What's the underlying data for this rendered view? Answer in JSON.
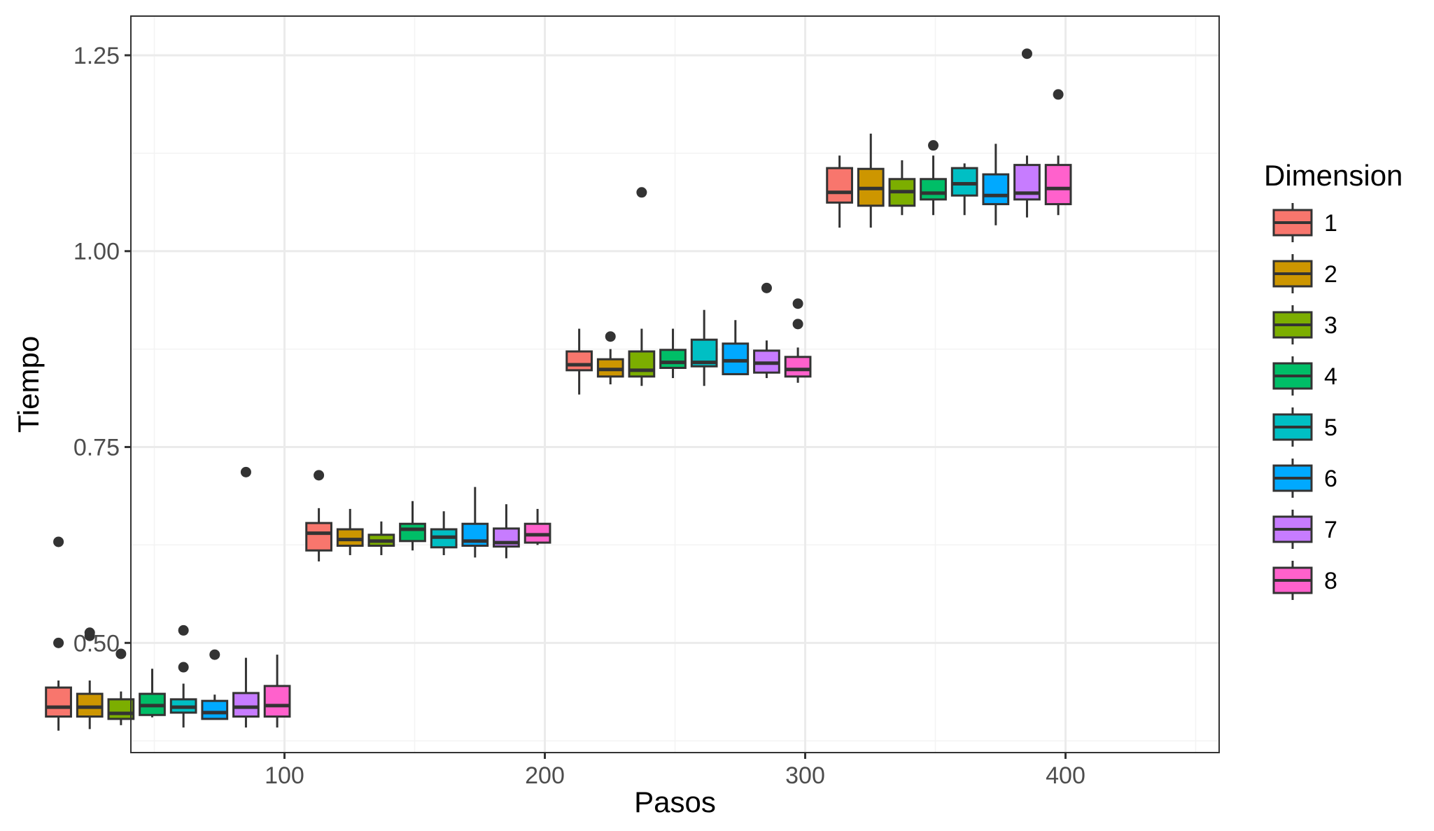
{
  "chart_data": {
    "type": "boxplot",
    "title": "",
    "xlabel": "Pasos",
    "ylabel": "Tiempo",
    "xlim": [
      41,
      459
    ],
    "ylim": [
      0.36,
      1.3
    ],
    "x_ticks": [
      {
        "value": 100,
        "label": "100"
      },
      {
        "value": 200,
        "label": "200"
      },
      {
        "value": 300,
        "label": "300"
      },
      {
        "value": 400,
        "label": "400"
      }
    ],
    "y_ticks": [
      {
        "value": 0.5,
        "label": "0.50"
      },
      {
        "value": 0.75,
        "label": "0.75"
      },
      {
        "value": 1.0,
        "label": "1.00"
      },
      {
        "value": 1.25,
        "label": "1.25"
      }
    ],
    "y_minor_ticks": [
      0.375,
      0.625,
      0.875,
      1.125
    ],
    "x_minor_ticks": [
      50,
      150,
      250,
      350,
      450
    ],
    "grid": true,
    "legend": {
      "title": "Dimension",
      "position": "right"
    },
    "box_width_units": 9.6,
    "groups": [
      {
        "x": 60,
        "boxes": [
          {
            "dimension": "1",
            "whisker_low": 0.388,
            "q1": 0.406,
            "median": 0.418,
            "q3": 0.443,
            "whisker_high": 0.452,
            "outliers": [
              0.5,
              0.629
            ]
          },
          {
            "dimension": "2",
            "whisker_low": 0.39,
            "q1": 0.406,
            "median": 0.418,
            "q3": 0.435,
            "whisker_high": 0.452,
            "outliers": [
              0.509,
              0.513
            ]
          },
          {
            "dimension": "3",
            "whisker_low": 0.395,
            "q1": 0.403,
            "median": 0.41,
            "q3": 0.428,
            "whisker_high": 0.438,
            "outliers": [
              0.486
            ]
          },
          {
            "dimension": "4",
            "whisker_low": 0.405,
            "q1": 0.408,
            "median": 0.42,
            "q3": 0.435,
            "whisker_high": 0.467,
            "outliers": []
          },
          {
            "dimension": "5",
            "whisker_low": 0.392,
            "q1": 0.411,
            "median": 0.418,
            "q3": 0.428,
            "whisker_high": 0.448,
            "outliers": [
              0.469,
              0.516
            ]
          },
          {
            "dimension": "6",
            "whisker_low": 0.403,
            "q1": 0.403,
            "median": 0.411,
            "q3": 0.426,
            "whisker_high": 0.434,
            "outliers": [
              0.485
            ]
          },
          {
            "dimension": "7",
            "whisker_low": 0.392,
            "q1": 0.406,
            "median": 0.418,
            "q3": 0.436,
            "whisker_high": 0.481,
            "outliers": [
              0.718
            ]
          },
          {
            "dimension": "8",
            "whisker_low": 0.392,
            "q1": 0.406,
            "median": 0.42,
            "q3": 0.445,
            "whisker_high": 0.485,
            "outliers": []
          }
        ]
      },
      {
        "x": 160,
        "boxes": [
          {
            "dimension": "1",
            "whisker_low": 0.604,
            "q1": 0.618,
            "median": 0.64,
            "q3": 0.653,
            "whisker_high": 0.672,
            "outliers": [
              0.714
            ]
          },
          {
            "dimension": "2",
            "whisker_low": 0.612,
            "q1": 0.624,
            "median": 0.632,
            "q3": 0.645,
            "whisker_high": 0.671,
            "outliers": []
          },
          {
            "dimension": "3",
            "whisker_low": 0.612,
            "q1": 0.624,
            "median": 0.63,
            "q3": 0.638,
            "whisker_high": 0.655,
            "outliers": []
          },
          {
            "dimension": "4",
            "whisker_low": 0.618,
            "q1": 0.63,
            "median": 0.645,
            "q3": 0.652,
            "whisker_high": 0.681,
            "outliers": []
          },
          {
            "dimension": "5",
            "whisker_low": 0.612,
            "q1": 0.622,
            "median": 0.635,
            "q3": 0.645,
            "whisker_high": 0.668,
            "outliers": []
          },
          {
            "dimension": "6",
            "whisker_low": 0.609,
            "q1": 0.624,
            "median": 0.63,
            "q3": 0.652,
            "whisker_high": 0.699,
            "outliers": []
          },
          {
            "dimension": "7",
            "whisker_low": 0.608,
            "q1": 0.623,
            "median": 0.628,
            "q3": 0.646,
            "whisker_high": 0.677,
            "outliers": []
          },
          {
            "dimension": "8",
            "whisker_low": 0.625,
            "q1": 0.628,
            "median": 0.638,
            "q3": 0.652,
            "whisker_high": 0.671,
            "outliers": []
          }
        ]
      },
      {
        "x": 260,
        "boxes": [
          {
            "dimension": "1",
            "whisker_low": 0.817,
            "q1": 0.848,
            "median": 0.855,
            "q3": 0.872,
            "whisker_high": 0.901,
            "outliers": []
          },
          {
            "dimension": "2",
            "whisker_low": 0.83,
            "q1": 0.84,
            "median": 0.849,
            "q3": 0.862,
            "whisker_high": 0.875,
            "outliers": [
              0.891
            ]
          },
          {
            "dimension": "3",
            "whisker_low": 0.828,
            "q1": 0.84,
            "median": 0.848,
            "q3": 0.872,
            "whisker_high": 0.901,
            "outliers": [
              1.075
            ]
          },
          {
            "dimension": "4",
            "whisker_low": 0.838,
            "q1": 0.851,
            "median": 0.858,
            "q3": 0.874,
            "whisker_high": 0.901,
            "outliers": []
          },
          {
            "dimension": "5",
            "whisker_low": 0.828,
            "q1": 0.853,
            "median": 0.858,
            "q3": 0.887,
            "whisker_high": 0.925,
            "outliers": []
          },
          {
            "dimension": "6",
            "whisker_low": 0.843,
            "q1": 0.843,
            "median": 0.86,
            "q3": 0.882,
            "whisker_high": 0.912,
            "outliers": []
          },
          {
            "dimension": "7",
            "whisker_low": 0.838,
            "q1": 0.845,
            "median": 0.857,
            "q3": 0.873,
            "whisker_high": 0.886,
            "outliers": [
              0.953
            ]
          },
          {
            "dimension": "8",
            "whisker_low": 0.832,
            "q1": 0.84,
            "median": 0.849,
            "q3": 0.865,
            "whisker_high": 0.877,
            "outliers": [
              0.907,
              0.933
            ]
          }
        ]
      },
      {
        "x": 360,
        "boxes": [
          {
            "dimension": "1",
            "whisker_low": 1.03,
            "q1": 1.062,
            "median": 1.075,
            "q3": 1.106,
            "whisker_high": 1.122,
            "outliers": []
          },
          {
            "dimension": "2",
            "whisker_low": 1.03,
            "q1": 1.058,
            "median": 1.08,
            "q3": 1.105,
            "whisker_high": 1.15,
            "outliers": []
          },
          {
            "dimension": "3",
            "whisker_low": 1.046,
            "q1": 1.058,
            "median": 1.076,
            "q3": 1.092,
            "whisker_high": 1.116,
            "outliers": []
          },
          {
            "dimension": "4",
            "whisker_low": 1.046,
            "q1": 1.066,
            "median": 1.074,
            "q3": 1.092,
            "whisker_high": 1.122,
            "outliers": [
              1.135
            ]
          },
          {
            "dimension": "5",
            "whisker_low": 1.046,
            "q1": 1.071,
            "median": 1.086,
            "q3": 1.106,
            "whisker_high": 1.112,
            "outliers": []
          },
          {
            "dimension": "6",
            "whisker_low": 1.033,
            "q1": 1.06,
            "median": 1.071,
            "q3": 1.098,
            "whisker_high": 1.137,
            "outliers": []
          },
          {
            "dimension": "7",
            "whisker_low": 1.043,
            "q1": 1.066,
            "median": 1.074,
            "q3": 1.11,
            "whisker_high": 1.122,
            "outliers": [
              1.252
            ]
          },
          {
            "dimension": "8",
            "whisker_low": 1.046,
            "q1": 1.06,
            "median": 1.08,
            "q3": 1.11,
            "whisker_high": 1.122,
            "outliers": [
              1.2
            ]
          }
        ]
      }
    ],
    "series": [
      {
        "name": "1",
        "color": "#F8766D"
      },
      {
        "name": "2",
        "color": "#CD9600"
      },
      {
        "name": "3",
        "color": "#7CAE00"
      },
      {
        "name": "4",
        "color": "#00BE67"
      },
      {
        "name": "5",
        "color": "#00BFC4"
      },
      {
        "name": "6",
        "color": "#00A9FF"
      },
      {
        "name": "7",
        "color": "#C77CFF"
      },
      {
        "name": "8",
        "color": "#FF61CC"
      }
    ],
    "style": {
      "panel_border": "#333333",
      "grid_major": "#EBEBEB",
      "grid_minor": "#F3F3F3",
      "box_line": "#333333",
      "outlier": "#333333"
    }
  }
}
